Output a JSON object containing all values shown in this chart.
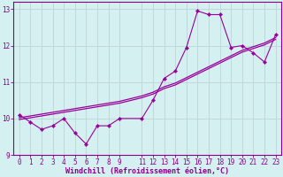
{
  "xlabel": "Windchill (Refroidissement éolien,°C)",
  "background_color": "#d5f0f0",
  "grid_color": "#c0d8d8",
  "line_color": "#990099",
  "x_scatter": [
    0,
    1,
    2,
    3,
    4,
    5,
    6,
    7,
    8,
    9,
    11,
    12,
    13,
    14,
    15,
    16,
    17,
    18,
    19,
    20,
    21,
    22,
    23
  ],
  "y_scatter": [
    10.1,
    9.9,
    9.7,
    9.8,
    10.0,
    9.6,
    9.3,
    9.8,
    9.8,
    10.0,
    10.0,
    10.5,
    11.1,
    11.3,
    11.95,
    12.95,
    12.85,
    12.85,
    11.95,
    12.0,
    11.8,
    11.55,
    12.3
  ],
  "x_trend": [
    0,
    1,
    2,
    3,
    4,
    5,
    6,
    7,
    8,
    9,
    11,
    12,
    13,
    14,
    15,
    16,
    17,
    18,
    19,
    20,
    21,
    22,
    23
  ],
  "y_trend1": [
    10.02,
    10.07,
    10.12,
    10.17,
    10.22,
    10.27,
    10.32,
    10.37,
    10.42,
    10.47,
    10.62,
    10.72,
    10.87,
    10.97,
    11.12,
    11.27,
    11.42,
    11.57,
    11.72,
    11.87,
    11.97,
    12.07,
    12.22
  ],
  "y_trend2": [
    9.97,
    10.02,
    10.07,
    10.12,
    10.17,
    10.22,
    10.27,
    10.32,
    10.37,
    10.42,
    10.57,
    10.67,
    10.82,
    10.92,
    11.07,
    11.22,
    11.37,
    11.52,
    11.67,
    11.82,
    11.92,
    12.02,
    12.17
  ],
  "ylim": [
    9.0,
    13.2
  ],
  "yticks": [
    9,
    10,
    11,
    12,
    13
  ],
  "xticks_major": [
    0,
    1,
    2,
    3,
    4,
    5,
    6,
    7,
    8,
    9,
    11,
    12,
    13,
    14,
    15,
    16,
    17,
    18,
    19,
    20,
    21,
    22,
    23
  ],
  "xlim": [
    -0.5,
    23.5
  ],
  "tick_fontsize": 5.5,
  "xlabel_fontsize": 6,
  "spine_color": "#880088"
}
